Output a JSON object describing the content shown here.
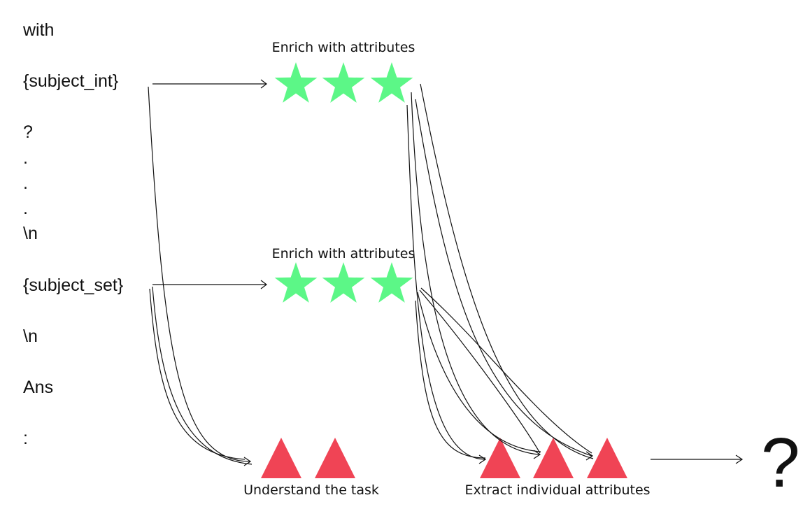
{
  "tokens": {
    "with": "with",
    "subject_int": "{subject_int}",
    "q": "?",
    "dot1": ".",
    "dot2": ".",
    "dot3": ".",
    "newline1": "\\n",
    "subject_set": "{subject_set}",
    "newline2": "\\n",
    "ans": "Ans",
    "colon": ":"
  },
  "captions": {
    "enrich_top": "Enrich with attributes",
    "enrich_bottom": "Enrich with attributes",
    "understand": "Understand the task",
    "extract": "Extract individual attributes"
  },
  "output": {
    "symbol": "?"
  },
  "colors": {
    "star": "#5CF787",
    "triangle": "#F04455",
    "line": "#111111"
  },
  "icons": [
    "star-icon",
    "triangle-icon",
    "arrow-icon"
  ]
}
